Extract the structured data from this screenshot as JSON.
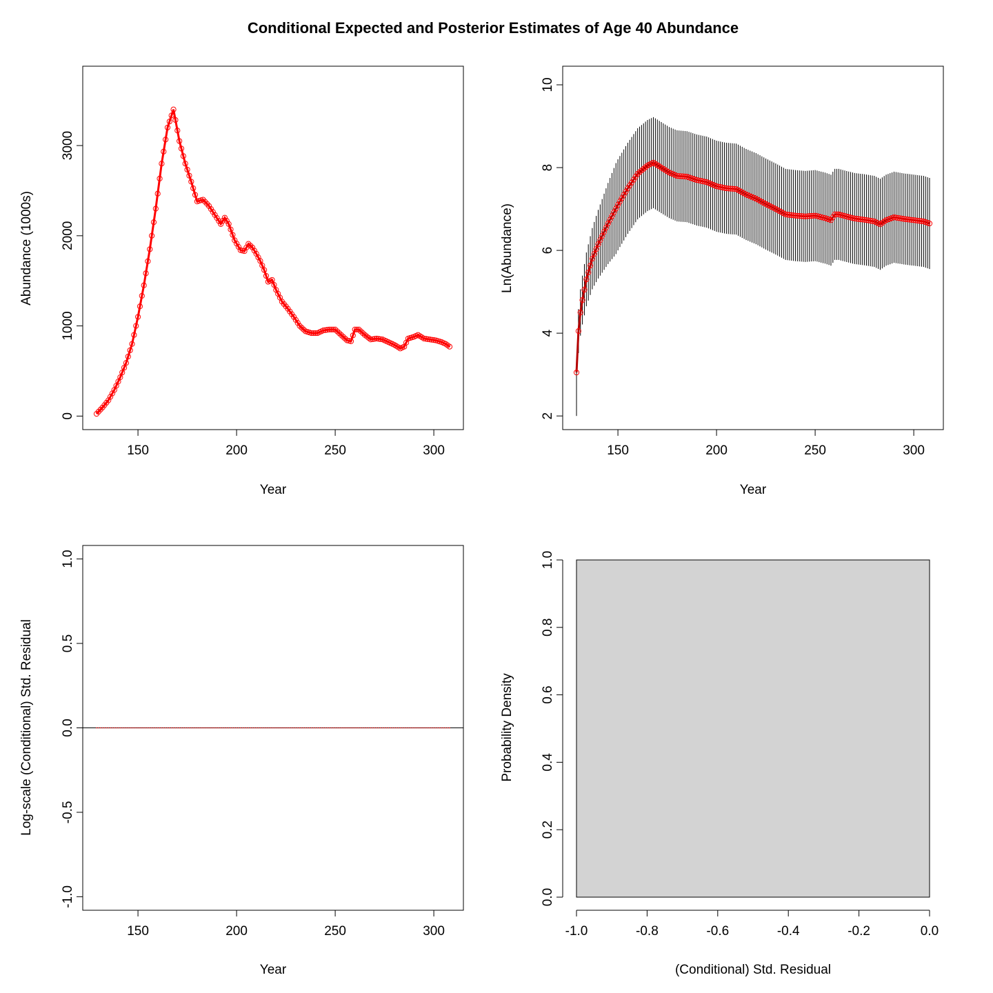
{
  "figure_title": "Conditional Expected and Posterior Estimates of Age 40 Abundance",
  "colors": {
    "series": "#ff0000",
    "series_dark": "#b40000",
    "axis": "#000000",
    "hist_fill": "#d3d3d3"
  },
  "chart_data": [
    {
      "type": "line",
      "xlabel": "Year",
      "ylabel": "Abundance (1000s)",
      "xlim": [
        122,
        315
      ],
      "ylim": [
        -150,
        3880
      ],
      "xticks": [
        150,
        200,
        250,
        300
      ],
      "yticks": [
        0,
        1000,
        2000,
        3000
      ],
      "grid": false,
      "markers": "open-circle",
      "series": [
        {
          "points": [
            [
              129,
              25
            ],
            [
              132,
              95
            ],
            [
              135,
              175
            ],
            [
              138,
              290
            ],
            [
              141,
              430
            ],
            [
              144,
              590
            ],
            [
              147,
              800
            ],
            [
              150,
              1100
            ],
            [
              153,
              1450
            ],
            [
              156,
              1850
            ],
            [
              159,
              2300
            ],
            [
              162,
              2800
            ],
            [
              165,
              3200
            ],
            [
              168,
              3400
            ],
            [
              171,
              3050
            ],
            [
              174,
              2800
            ],
            [
              177,
              2600
            ],
            [
              180,
              2380
            ],
            [
              183,
              2400
            ],
            [
              186,
              2330
            ],
            [
              189,
              2230
            ],
            [
              192,
              2130
            ],
            [
              194,
              2200
            ],
            [
              196,
              2130
            ],
            [
              199,
              1950
            ],
            [
              202,
              1840
            ],
            [
              204,
              1830
            ],
            [
              206,
              1910
            ],
            [
              208,
              1870
            ],
            [
              210,
              1800
            ],
            [
              212,
              1720
            ],
            [
              214,
              1620
            ],
            [
              216,
              1490
            ],
            [
              218,
              1510
            ],
            [
              220,
              1400
            ],
            [
              223,
              1270
            ],
            [
              226,
              1190
            ],
            [
              229,
              1100
            ],
            [
              232,
              1000
            ],
            [
              235,
              940
            ],
            [
              238,
              920
            ],
            [
              241,
              920
            ],
            [
              244,
              950
            ],
            [
              247,
              960
            ],
            [
              250,
              960
            ],
            [
              253,
              900
            ],
            [
              256,
              840
            ],
            [
              258,
              830
            ],
            [
              260,
              960
            ],
            [
              262,
              960
            ],
            [
              265,
              900
            ],
            [
              268,
              850
            ],
            [
              271,
              860
            ],
            [
              274,
              850
            ],
            [
              277,
              820
            ],
            [
              280,
              790
            ],
            [
              283,
              750
            ],
            [
              285,
              770
            ],
            [
              287,
              860
            ],
            [
              290,
              880
            ],
            [
              292,
              900
            ],
            [
              295,
              860
            ],
            [
              298,
              850
            ],
            [
              301,
              840
            ],
            [
              304,
              820
            ],
            [
              306,
              800
            ],
            [
              308,
              770
            ]
          ]
        }
      ]
    },
    {
      "type": "line",
      "xlabel": "Year",
      "ylabel": "Ln(Abundance)",
      "xlim": [
        122,
        315
      ],
      "ylim": [
        1.67,
        10.45
      ],
      "xticks": [
        150,
        200,
        250,
        300
      ],
      "yticks": [
        2,
        4,
        6,
        8,
        10
      ],
      "grid": false,
      "error_bars": "vertical interval per year",
      "markers": "open-circle",
      "series": [
        {
          "points": [
            [
              129,
              3.05
            ],
            [
              130,
              4.05
            ],
            [
              131,
              4.5
            ],
            [
              132,
              4.8
            ],
            [
              134,
              5.3
            ],
            [
              137,
              5.8
            ],
            [
              140,
              6.15
            ],
            [
              145,
              6.65
            ],
            [
              150,
              7.1
            ],
            [
              155,
              7.5
            ],
            [
              160,
              7.85
            ],
            [
              165,
              8.05
            ],
            [
              168,
              8.12
            ],
            [
              172,
              8.0
            ],
            [
              176,
              7.88
            ],
            [
              180,
              7.8
            ],
            [
              185,
              7.78
            ],
            [
              190,
              7.7
            ],
            [
              195,
              7.65
            ],
            [
              200,
              7.55
            ],
            [
              205,
              7.5
            ],
            [
              210,
              7.48
            ],
            [
              215,
              7.35
            ],
            [
              220,
              7.25
            ],
            [
              225,
              7.12
            ],
            [
              230,
              7.0
            ],
            [
              235,
              6.87
            ],
            [
              240,
              6.84
            ],
            [
              245,
              6.82
            ],
            [
              250,
              6.84
            ],
            [
              255,
              6.78
            ],
            [
              258,
              6.73
            ],
            [
              260,
              6.87
            ],
            [
              262,
              6.87
            ],
            [
              265,
              6.83
            ],
            [
              270,
              6.77
            ],
            [
              275,
              6.74
            ],
            [
              280,
              6.7
            ],
            [
              283,
              6.63
            ],
            [
              286,
              6.73
            ],
            [
              290,
              6.8
            ],
            [
              295,
              6.76
            ],
            [
              300,
              6.73
            ],
            [
              305,
              6.7
            ],
            [
              308,
              6.65
            ]
          ]
        }
      ]
    },
    {
      "type": "scatter",
      "xlabel": "Year",
      "ylabel": "Log-scale (Conditional) Std. Residual",
      "xlim": [
        122,
        315
      ],
      "ylim": [
        -1.08,
        1.08
      ],
      "xticks": [
        150,
        200,
        250,
        300
      ],
      "yticks": [
        -1.0,
        -0.5,
        0.0,
        0.5,
        1.0
      ],
      "ytick_labels": [
        "-1.0",
        "-0.5",
        "0.0",
        "0.5",
        "1.0"
      ],
      "reference_line": 0,
      "grid": false,
      "x_range": [
        129,
        308
      ],
      "residual_value": 0
    },
    {
      "type": "bar",
      "xlabel": "(Conditional) Std. Residual",
      "ylabel": "Probability Density",
      "xlim": [
        -1.0,
        0.0
      ],
      "ylim": [
        0.0,
        1.0
      ],
      "xticks": [
        -1.0,
        -0.8,
        -0.6,
        -0.4,
        -0.2,
        0.0
      ],
      "xtick_labels": [
        "-1.0",
        "-0.8",
        "-0.6",
        "-0.4",
        "-0.2",
        "0.0"
      ],
      "yticks": [
        0.0,
        0.2,
        0.4,
        0.6,
        0.8,
        1.0
      ],
      "ytick_labels": [
        "0.0",
        "0.2",
        "0.4",
        "0.6",
        "0.8",
        "1.0"
      ],
      "bins": [
        {
          "from": -1.0,
          "to": 0.0,
          "density": 1.0
        }
      ]
    }
  ]
}
